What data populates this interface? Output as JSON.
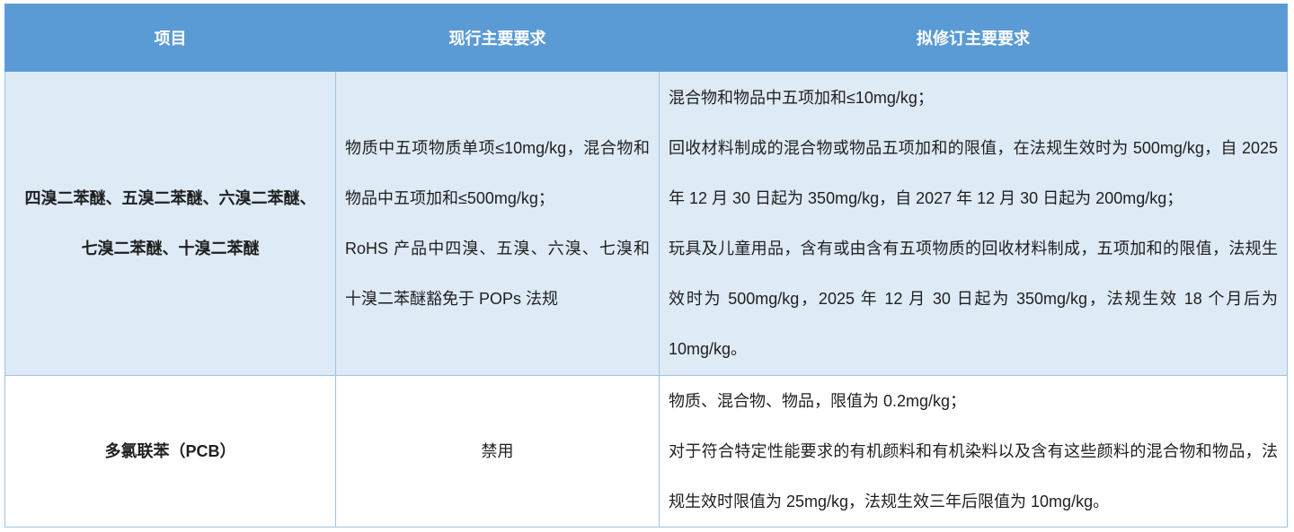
{
  "table": {
    "header": [
      "项目",
      "现行主要要求",
      "拟修订主要要求"
    ],
    "rows": [
      {
        "item": "四溴二苯醚、五溴二苯醚、六溴二苯醚、七溴二苯醚、十溴二苯醚",
        "current": [
          "物质中五项物质单项≤10mg/kg，混合物和物品中五项加和≤500mg/kg；",
          "RoHS 产品中四溴、五溴、六溴、七溴和十溴二苯醚豁免于 POPs 法规"
        ],
        "proposed": [
          "混合物和物品中五项加和≤10mg/kg；",
          "回收材料制成的混合物或物品五项加和的限值，在法规生效时为 500mg/kg，自 2025 年 12 月 30 日起为 350mg/kg，自 2027 年 12 月 30 日起为 200mg/kg；",
          "玩具及儿童用品，含有或由含有五项物质的回收材料制成，五项加和的限值，法规生效时为 500mg/kg，2025 年 12 月 30 日起为 350mg/kg，法规生效 18 个月后为 10mg/kg。"
        ]
      },
      {
        "item": "多氯联苯（PCB）",
        "current": [
          "禁用"
        ],
        "proposed": [
          "物质、混合物、物品，限值为 0.2mg/kg；",
          "对于符合特定性能要求的有机颜料和有机染料以及含有这些颜料的混合物和物品，法规生效时限值为 25mg/kg，法规生效三年后限值为 10mg/kg。"
        ]
      }
    ]
  },
  "colors": {
    "header_bg": "#5B9BD5",
    "header_text": "#FFFFFF",
    "shaded_row_bg": "#DEEAF6",
    "plain_row_bg": "#FFFFFF",
    "cell_border": "#9DC3E6",
    "body_text": "#1F1F1F"
  }
}
